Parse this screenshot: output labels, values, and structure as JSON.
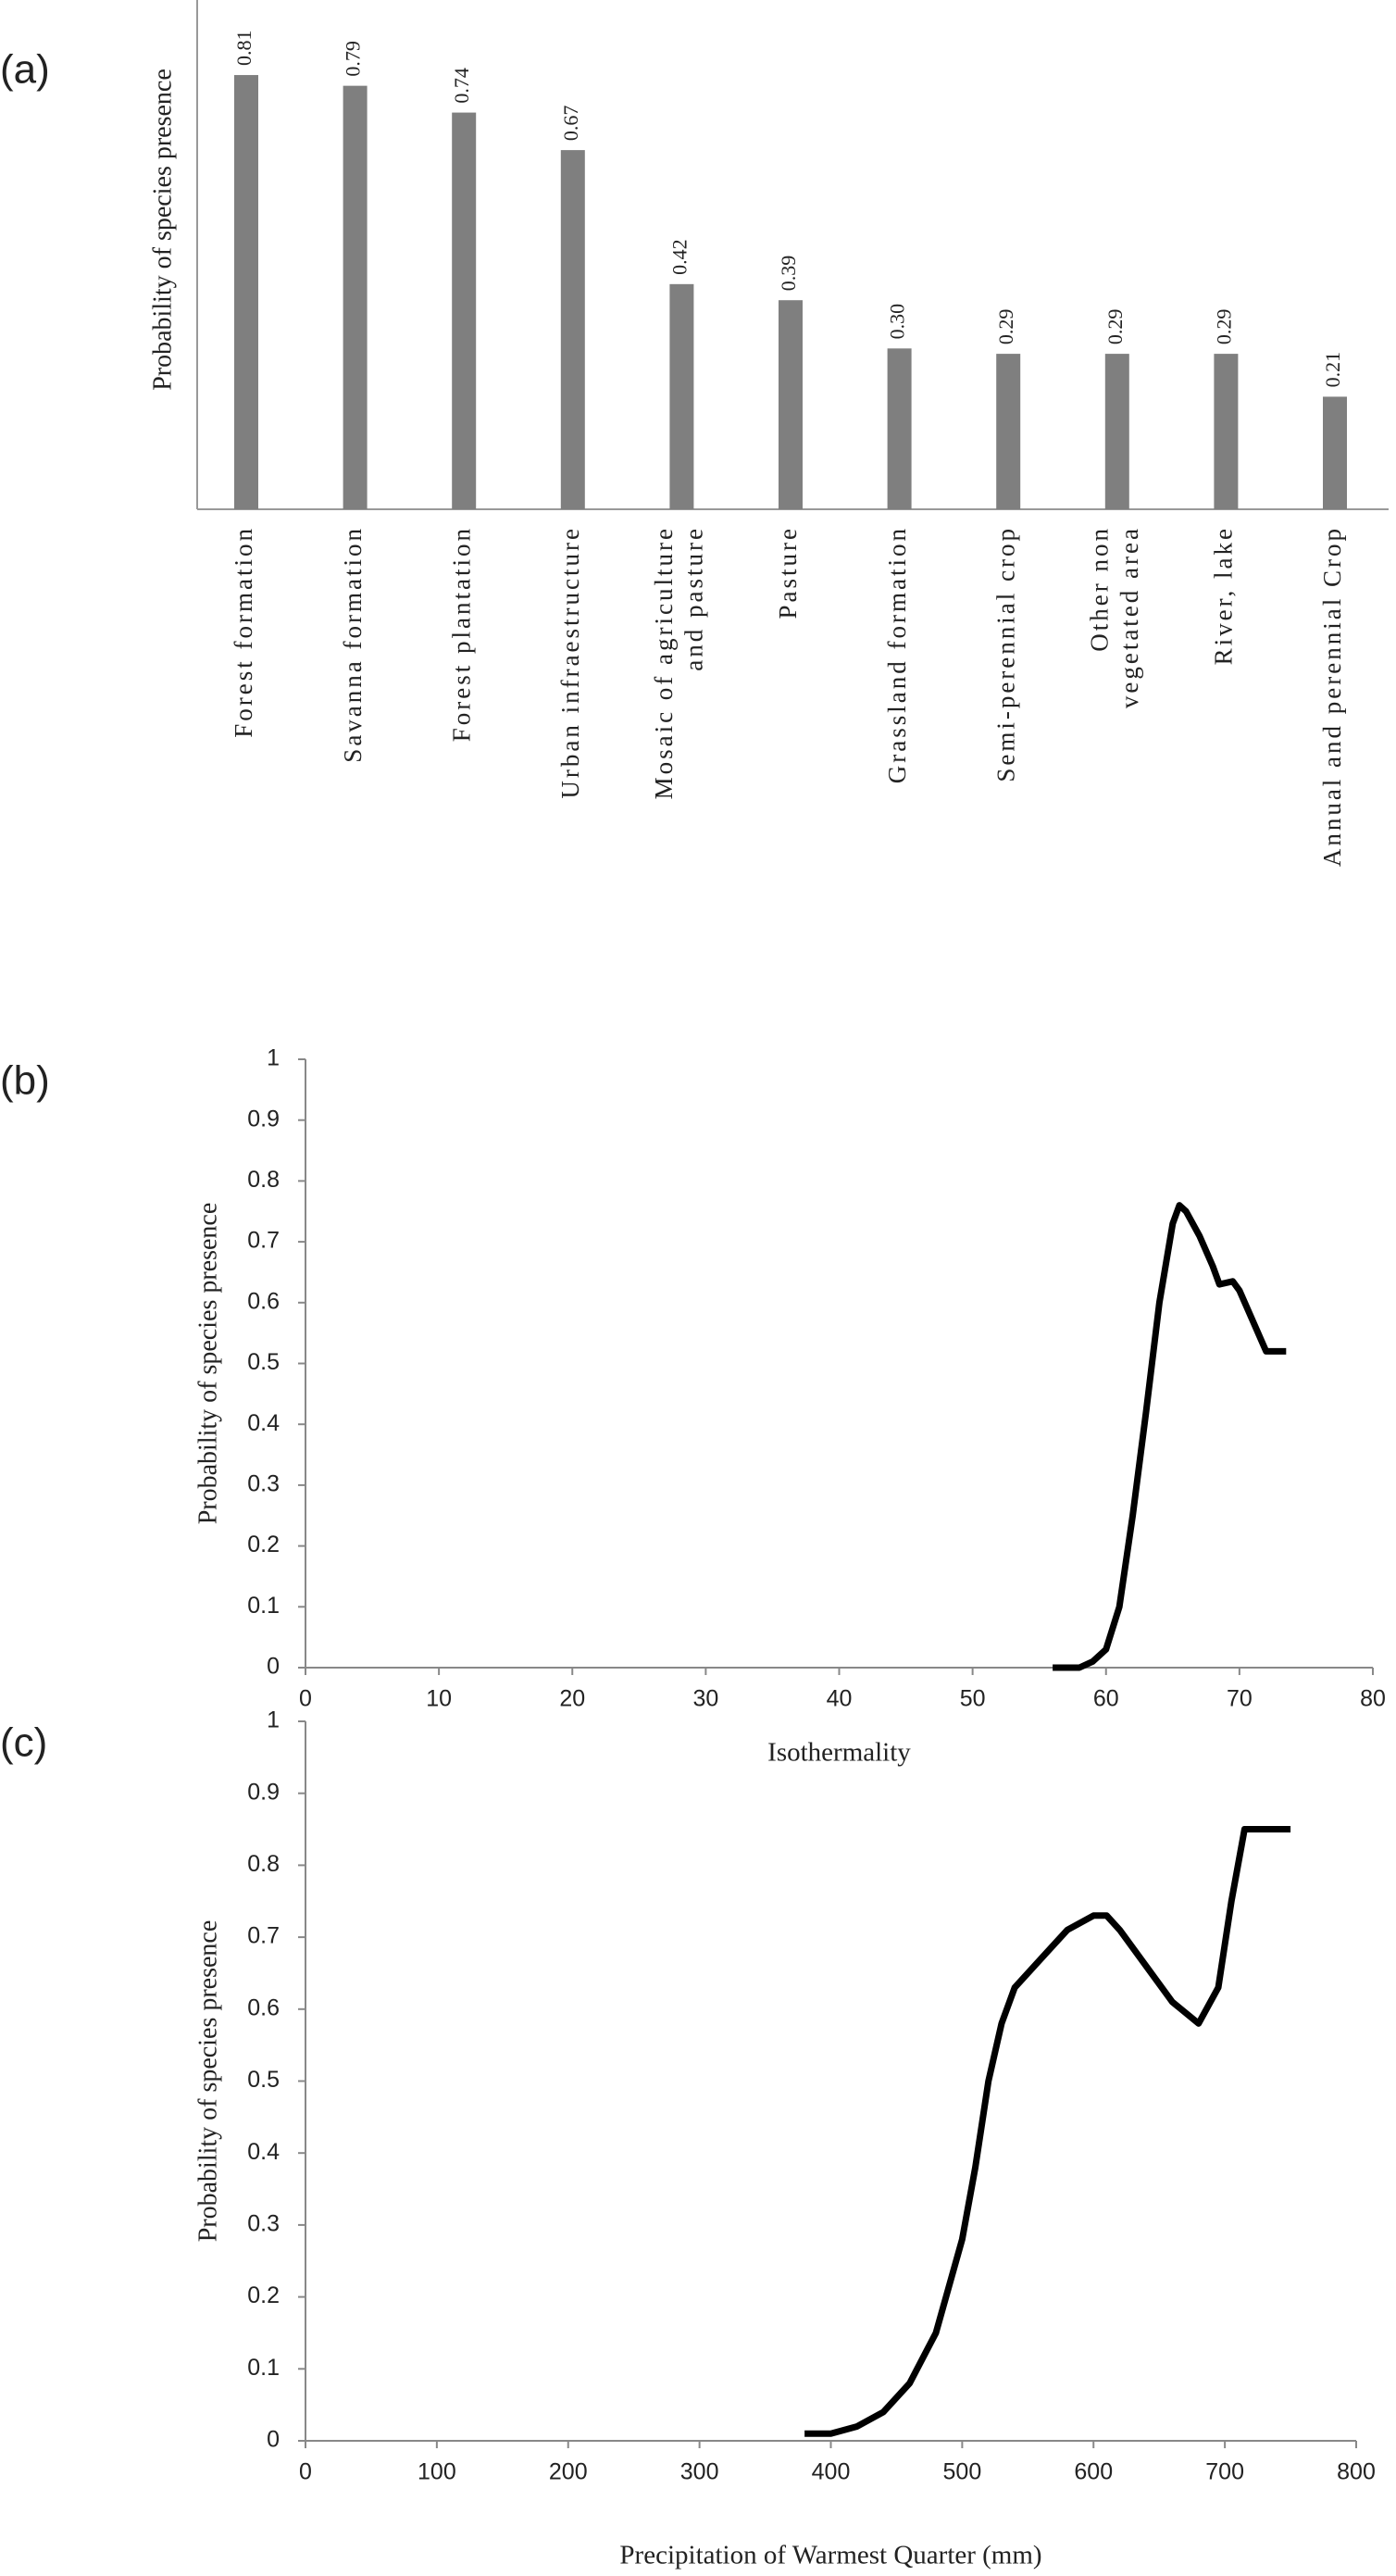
{
  "chart_data": [
    {
      "type": "bar",
      "panel": "(a)",
      "y_label": "Probability of species presence",
      "categories": [
        "Forest formation",
        "Savanna formation",
        "Forest plantation",
        "Urban infraestructure",
        "Mosaic of agriculture\nand pasture",
        "Pasture",
        "Grassland formation",
        "Semi-perennial crop",
        "Other non\nvegetated area",
        "River, lake",
        "Annual and perennial Crop"
      ],
      "values": [
        0.81,
        0.79,
        0.74,
        0.67,
        0.42,
        0.39,
        0.3,
        0.29,
        0.29,
        0.29,
        0.21
      ],
      "value_labels": [
        "0.81",
        "0.79",
        "0.74",
        "0.67",
        "0.42",
        "0.39",
        "0.30",
        "0.29",
        "0.29",
        "0.29",
        "0.21"
      ],
      "color": "#7f7f7f",
      "ylim": [
        0,
        0.95
      ]
    },
    {
      "type": "line",
      "panel": "(b)",
      "y_label": "Probability of species presence",
      "x_label": "Isothermality",
      "x": [
        56,
        58,
        59,
        60,
        61,
        62,
        63,
        64,
        65,
        65.5,
        66,
        67,
        68,
        68.5,
        69.5,
        70,
        71,
        72,
        73.5
      ],
      "values": [
        0,
        0,
        0.01,
        0.03,
        0.1,
        0.25,
        0.42,
        0.6,
        0.73,
        0.76,
        0.75,
        0.71,
        0.66,
        0.63,
        0.635,
        0.62,
        0.57,
        0.52,
        0.52
      ],
      "color": "#000000",
      "xlim": [
        0,
        80
      ],
      "ylim": [
        0,
        1
      ],
      "xticks": [
        0,
        10,
        20,
        30,
        40,
        50,
        60,
        70,
        80
      ],
      "yticks": [
        0,
        0.1,
        0.2,
        0.3,
        0.4,
        0.5,
        0.6,
        0.7,
        0.8,
        0.9,
        1
      ]
    },
    {
      "type": "line",
      "panel": "(c)",
      "y_label": "Probability of species presence",
      "x_label": "Precipitation of Warmest Quarter  (mm)",
      "x": [
        380,
        400,
        420,
        440,
        460,
        480,
        500,
        510,
        520,
        530,
        540,
        560,
        580,
        600,
        610,
        620,
        640,
        660,
        680,
        695,
        705,
        715,
        750
      ],
      "values": [
        0.01,
        0.01,
        0.02,
        0.04,
        0.08,
        0.15,
        0.28,
        0.38,
        0.5,
        0.58,
        0.63,
        0.67,
        0.71,
        0.73,
        0.73,
        0.71,
        0.66,
        0.61,
        0.58,
        0.63,
        0.75,
        0.85,
        0.85
      ],
      "color": "#000000",
      "xlim": [
        0,
        800
      ],
      "ylim": [
        0,
        1
      ],
      "xticks": [
        0,
        100,
        200,
        300,
        400,
        500,
        600,
        700,
        800
      ],
      "yticks": [
        0,
        0.1,
        0.2,
        0.3,
        0.4,
        0.5,
        0.6,
        0.7,
        0.8,
        0.9,
        1
      ]
    }
  ]
}
